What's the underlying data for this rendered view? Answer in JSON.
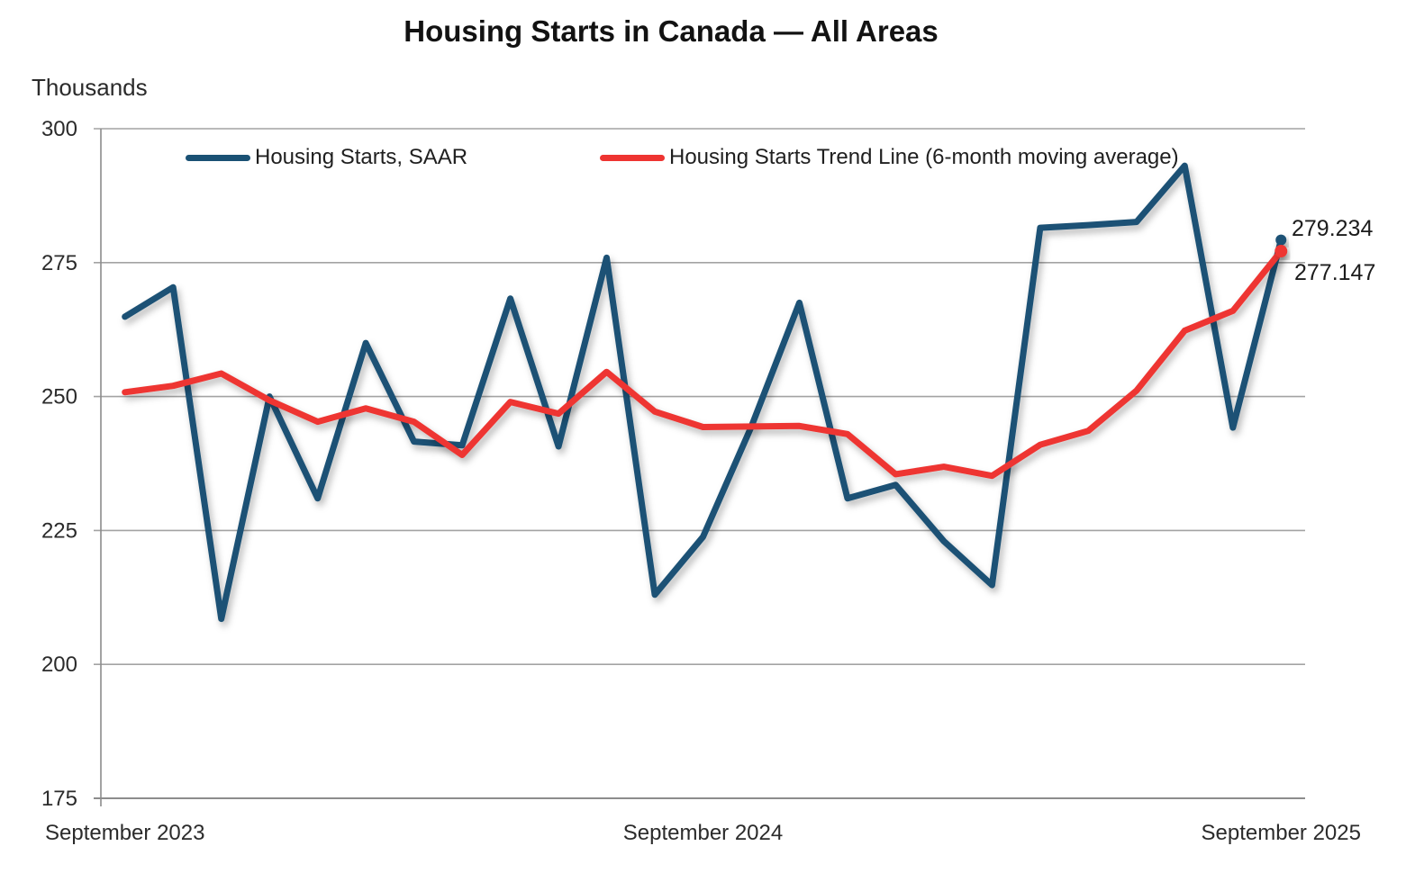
{
  "title": "Housing Starts in Canada — All Areas",
  "y_axis_title": "Thousands",
  "legend": {
    "saar_label": "Housing Starts, SAAR",
    "trend_label": "Housing Starts Trend Line (6-month moving average)"
  },
  "end_labels": {
    "saar": "279.234",
    "trend": "277.147"
  },
  "colors": {
    "saar": "#1a5174",
    "trend": "#ee3431",
    "gridline": "#a3a3a3",
    "axis": "#8c8c8c",
    "tick_text": "#2b2b2b"
  },
  "chart_data": {
    "type": "line",
    "title": "Housing Starts in Canada — All Areas",
    "ylabel": "Thousands",
    "ylim": [
      175,
      300
    ],
    "yticks": [
      300,
      275,
      250,
      225,
      200,
      175
    ],
    "grid": "horizontal-only",
    "legend_position": "top-inside",
    "x": [
      "Sep-23",
      "Oct-23",
      "Nov-23",
      "Dec-23",
      "Jan-24",
      "Feb-24",
      "Mar-24",
      "Apr-24",
      "May-24",
      "Jun-24",
      "Jul-24",
      "Aug-24",
      "Sep-24",
      "Oct-24",
      "Nov-24",
      "Dec-24",
      "Jan-25",
      "Feb-25",
      "Mar-25",
      "Apr-25",
      "May-25",
      "Jun-25",
      "Jul-25",
      "Aug-25",
      "Sep-25"
    ],
    "x_tick_labels_shown": [
      {
        "label": "September 2023",
        "index": 0
      },
      {
        "label": "September 2024",
        "index": 12
      },
      {
        "label": "September 2025",
        "index": 24
      }
    ],
    "series": [
      {
        "name": "Housing Starts, SAAR",
        "color": "#1a5174",
        "end_label": "279.234",
        "values": [
          264.9,
          270.4,
          208.5,
          250.0,
          231.0,
          260.0,
          241.6,
          240.9,
          268.3,
          240.7,
          275.9,
          213.0,
          223.8,
          244.3,
          267.5,
          231.0,
          233.5,
          223.0,
          214.8,
          281.5,
          282.0,
          282.6,
          293.1,
          244.2,
          279.234
        ]
      },
      {
        "name": "Housing Starts Trend Line (6-month moving average)",
        "color": "#ee3431",
        "end_label": "277.147",
        "values": [
          250.8,
          252.0,
          254.3,
          249.3,
          245.3,
          247.8,
          245.3,
          239.1,
          249.0,
          246.8,
          254.6,
          247.2,
          244.3,
          244.4,
          244.5,
          243.0,
          235.5,
          236.9,
          235.2,
          241.0,
          243.6,
          251.1,
          262.3,
          266.0,
          277.147
        ]
      }
    ]
  }
}
